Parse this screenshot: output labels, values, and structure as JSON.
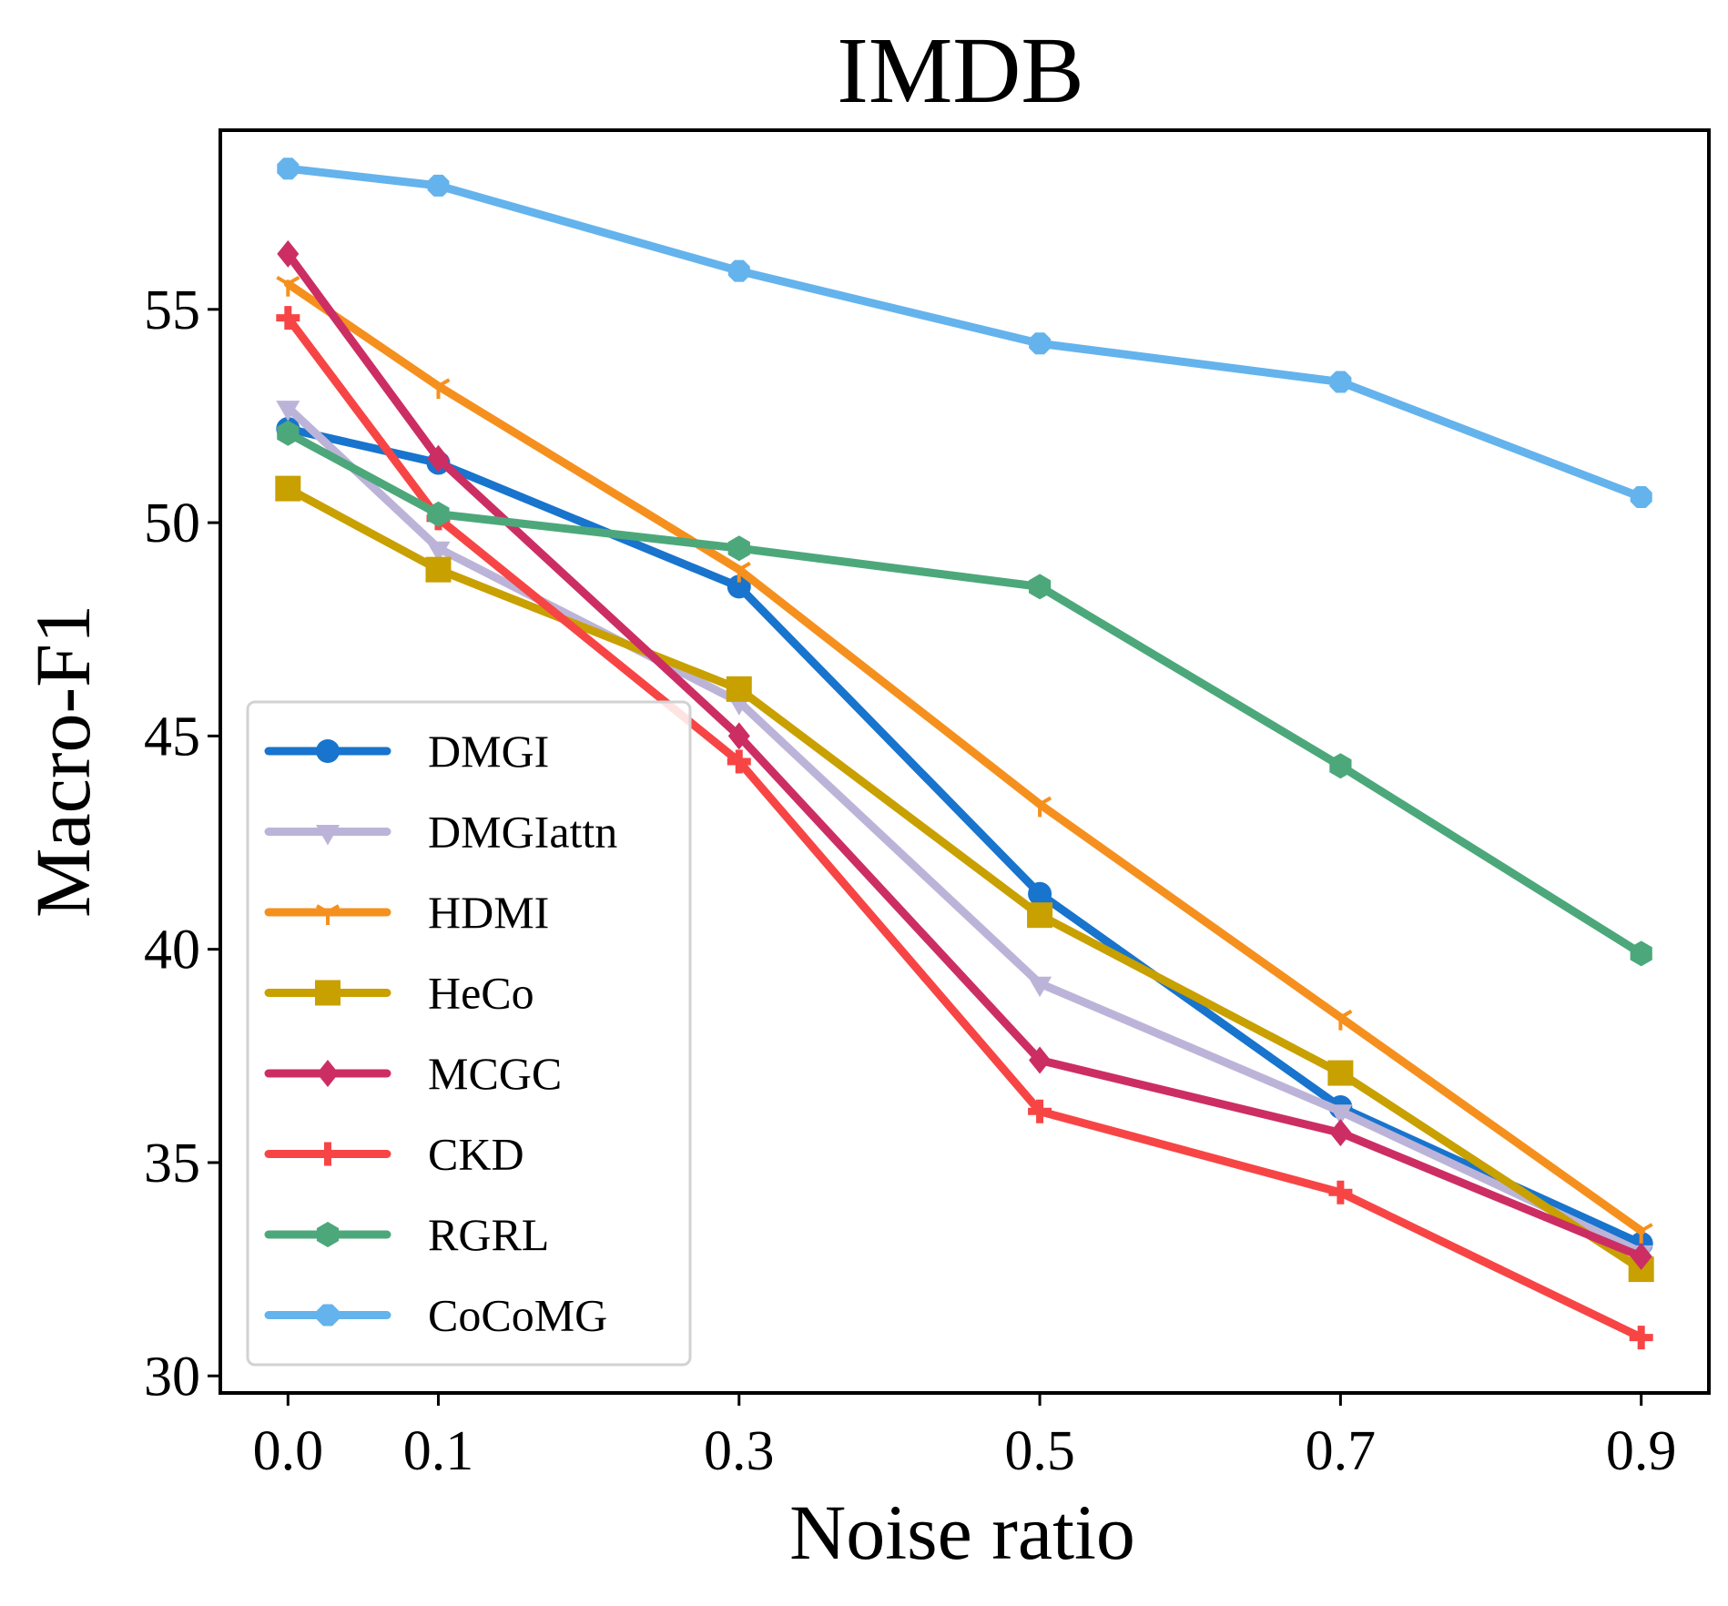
{
  "chart_data": {
    "type": "line",
    "title": "IMDB",
    "xlabel": "Noise ratio",
    "ylabel": "Macro-F1",
    "x": [
      0.0,
      0.1,
      0.3,
      0.5,
      0.7,
      0.9
    ],
    "x_tick_labels": [
      "0.0",
      "0.1",
      "0.3",
      "0.5",
      "0.7",
      "0.9"
    ],
    "y_ticks": [
      30,
      35,
      40,
      45,
      50,
      55
    ],
    "y_tick_labels": [
      "30",
      "35",
      "40",
      "45",
      "50",
      "55"
    ],
    "xlim": [
      -0.045,
      0.945
    ],
    "ylim": [
      29.6,
      59.2
    ],
    "legend_position": "lower-left",
    "grid": false,
    "series": [
      {
        "name": "DMGI",
        "color": "#1874cd",
        "marker": "circle",
        "values": [
          52.2,
          51.4,
          48.5,
          41.3,
          36.3,
          33.1
        ]
      },
      {
        "name": "DMGIattn",
        "color": "#bcb4d8",
        "marker": "triangle-down",
        "values": [
          52.7,
          49.4,
          45.8,
          39.2,
          36.2,
          32.9
        ]
      },
      {
        "name": "HDMI",
        "color": "#f5901e",
        "marker": "tri-down",
        "values": [
          55.6,
          53.2,
          48.9,
          43.4,
          38.4,
          33.4
        ]
      },
      {
        "name": "HeCo",
        "color": "#c8a000",
        "marker": "square",
        "values": [
          50.8,
          48.9,
          46.1,
          40.8,
          37.1,
          32.5
        ]
      },
      {
        "name": "MCGC",
        "color": "#cc2e64",
        "marker": "diamond",
        "values": [
          56.3,
          51.5,
          45.0,
          37.4,
          35.7,
          32.8
        ]
      },
      {
        "name": "CKD",
        "color": "#f74545",
        "marker": "plus",
        "values": [
          54.8,
          50.1,
          44.4,
          36.2,
          34.3,
          30.9
        ]
      },
      {
        "name": "RGRL",
        "color": "#4ca87a",
        "marker": "hexagon",
        "values": [
          52.1,
          50.2,
          49.4,
          48.5,
          44.3,
          39.9
        ]
      },
      {
        "name": "CoCoMG",
        "color": "#64b3ec",
        "marker": "octagon",
        "values": [
          58.3,
          57.9,
          55.9,
          54.2,
          53.3,
          50.6
        ]
      }
    ]
  }
}
